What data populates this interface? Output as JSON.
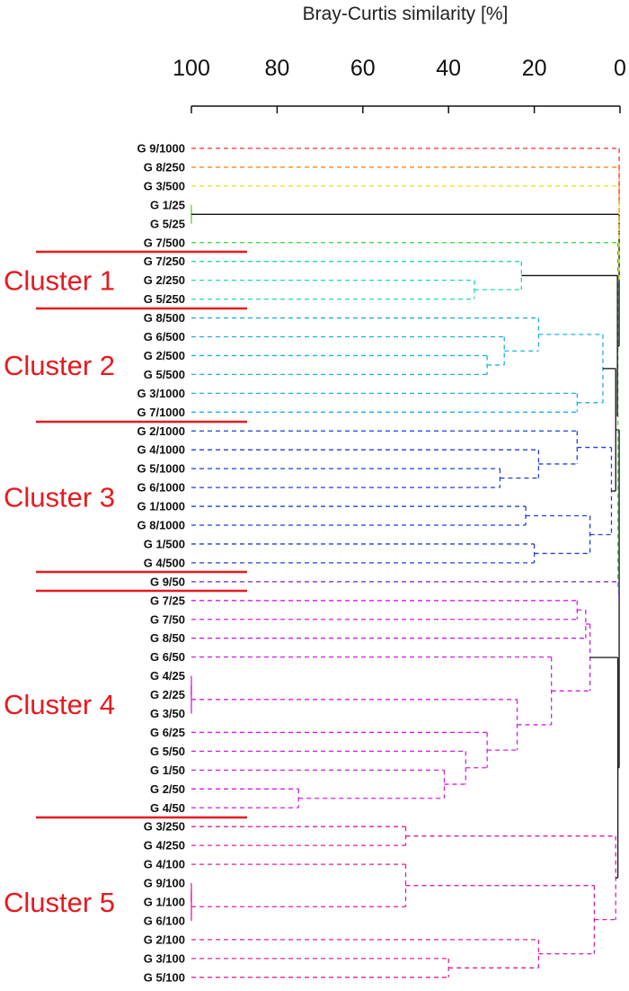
{
  "chart_data": {
    "type": "dendrogram",
    "title": "",
    "xlabel": "Bray-Curtis similarity [%]",
    "xlim": [
      100,
      0
    ],
    "ticks": [
      100,
      80,
      60,
      40,
      20,
      0
    ],
    "tick_labels": [
      "100",
      "80",
      "60",
      "40",
      "20",
      "0"
    ],
    "leaves": [
      {
        "label": "G 9/1000",
        "color": "#ff3030"
      },
      {
        "label": "G 8/250",
        "color": "#f08a1a"
      },
      {
        "label": "G 3/500",
        "color": "#f0e010"
      },
      {
        "label": "G 1/25",
        "color": "#60d020"
      },
      {
        "label": "G 5/25",
        "color": "#60d020"
      },
      {
        "label": "G 7/500",
        "color": "#30d830"
      },
      {
        "label": "G 7/250",
        "color": "#20d8b0"
      },
      {
        "label": "G 2/250",
        "color": "#20d8b0"
      },
      {
        "label": "G 5/250",
        "color": "#20d8b0"
      },
      {
        "label": "G 8/500",
        "color": "#20b0e0"
      },
      {
        "label": "G 6/500",
        "color": "#20b0e0"
      },
      {
        "label": "G 2/500",
        "color": "#20b0e0"
      },
      {
        "label": "G 5/500",
        "color": "#20b0e0"
      },
      {
        "label": "G 3/1000",
        "color": "#20b0e0"
      },
      {
        "label": "G 7/1000",
        "color": "#20b0e0"
      },
      {
        "label": "G 2/1000",
        "color": "#2040d0"
      },
      {
        "label": "G 4/1000",
        "color": "#2040d0"
      },
      {
        "label": "G 5/1000",
        "color": "#2040d0"
      },
      {
        "label": "G 6/1000",
        "color": "#2040d0"
      },
      {
        "label": "G 1/1000",
        "color": "#2040d0"
      },
      {
        "label": "G 8/1000",
        "color": "#2040d0"
      },
      {
        "label": "G 1/500",
        "color": "#2040d0"
      },
      {
        "label": "G 4/500",
        "color": "#2040d0"
      },
      {
        "label": "G 9/50",
        "color": "#7020d0"
      },
      {
        "label": "G 7/25",
        "color": "#d020e0"
      },
      {
        "label": "G 7/50",
        "color": "#d020e0"
      },
      {
        "label": "G 8/50",
        "color": "#d020e0"
      },
      {
        "label": "G 6/50",
        "color": "#d020e0"
      },
      {
        "label": "G 4/25",
        "color": "#d020e0"
      },
      {
        "label": "G 2/25",
        "color": "#d020e0"
      },
      {
        "label": "G 3/50",
        "color": "#d020e0"
      },
      {
        "label": "G 6/25",
        "color": "#d020e0"
      },
      {
        "label": "G 5/50",
        "color": "#d020e0"
      },
      {
        "label": "G 1/50",
        "color": "#d020e0"
      },
      {
        "label": "G 2/50",
        "color": "#d020e0"
      },
      {
        "label": "G 4/50",
        "color": "#d020e0"
      },
      {
        "label": "G 3/250",
        "color": "#e0209a"
      },
      {
        "label": "G 4/250",
        "color": "#e0209a"
      },
      {
        "label": "G 4/100",
        "color": "#e0209a"
      },
      {
        "label": "G 9/100",
        "color": "#e0209a"
      },
      {
        "label": "G 1/100",
        "color": "#e0209a"
      },
      {
        "label": "G 6/100",
        "color": "#e0209a"
      },
      {
        "label": "G 2/100",
        "color": "#e0209a"
      },
      {
        "label": "G 3/100",
        "color": "#e0209a"
      },
      {
        "label": "G 5/100",
        "color": "#e0209a"
      }
    ],
    "merges": [
      {
        "height": 100,
        "children": [
          "L3",
          "L4"
        ],
        "style": "solid",
        "color": "#60d020"
      },
      {
        "height": 34,
        "children": [
          "L7",
          "L8"
        ],
        "style": "dashed",
        "color": "#20d8b0"
      },
      {
        "height": 23,
        "children": [
          "L6",
          "m1"
        ],
        "style": "dashed",
        "color": "#20d8b0"
      },
      {
        "height": 31,
        "children": [
          "L11",
          "L12"
        ],
        "style": "dashed",
        "color": "#20b0e0"
      },
      {
        "height": 27,
        "children": [
          "L10",
          "m3"
        ],
        "style": "dashed",
        "color": "#20b0e0"
      },
      {
        "height": 19,
        "children": [
          "L9",
          "m4"
        ],
        "style": "dashed",
        "color": "#20b0e0"
      },
      {
        "height": 10,
        "children": [
          "L13",
          "L14"
        ],
        "style": "dashed",
        "color": "#20b0e0"
      },
      {
        "height": 4,
        "children": [
          "m5",
          "m6"
        ],
        "style": "dashed",
        "color": "#20b0e0"
      },
      {
        "height": 28,
        "children": [
          "L17",
          "L18"
        ],
        "style": "dashed",
        "color": "#2040d0"
      },
      {
        "height": 19,
        "children": [
          "L16",
          "m8"
        ],
        "style": "dashed",
        "color": "#2040d0"
      },
      {
        "height": 10,
        "children": [
          "L15",
          "m9"
        ],
        "style": "dashed",
        "color": "#2040d0"
      },
      {
        "height": 22,
        "children": [
          "L19",
          "L20"
        ],
        "style": "dashed",
        "color": "#2040d0"
      },
      {
        "height": 20,
        "children": [
          "L21",
          "L22"
        ],
        "style": "dashed",
        "color": "#2040d0"
      },
      {
        "height": 7,
        "children": [
          "m11",
          "m12"
        ],
        "style": "dashed",
        "color": "#2040d0"
      },
      {
        "height": 2,
        "children": [
          "m10",
          "m13"
        ],
        "style": "dashed",
        "color": "#2040d0"
      },
      {
        "height": 1,
        "children": [
          "m7",
          "m14"
        ],
        "style": "solid",
        "color": "#111111"
      },
      {
        "height": 100,
        "children": [
          "L28",
          "L29"
        ],
        "style": "solid",
        "color": "#d020e0"
      },
      {
        "height": 100,
        "children": [
          "m16",
          "L30"
        ],
        "style": "solid",
        "color": "#d020e0"
      },
      {
        "height": 75,
        "children": [
          "L34",
          "L35"
        ],
        "style": "dashed",
        "color": "#d020e0"
      },
      {
        "height": 41,
        "children": [
          "L33",
          "m18"
        ],
        "style": "dashed",
        "color": "#d020e0"
      },
      {
        "height": 36,
        "children": [
          "L32",
          "m19"
        ],
        "style": "dashed",
        "color": "#d020e0"
      },
      {
        "height": 31,
        "children": [
          "L31",
          "m20"
        ],
        "style": "dashed",
        "color": "#d020e0"
      },
      {
        "height": 24,
        "children": [
          "m17",
          "m21"
        ],
        "style": "dashed",
        "color": "#d020e0"
      },
      {
        "height": 16,
        "children": [
          "L27",
          "m22"
        ],
        "style": "dashed",
        "color": "#d020e0"
      },
      {
        "height": 10,
        "children": [
          "L24",
          "L25"
        ],
        "style": "dashed",
        "color": "#d020e0"
      },
      {
        "height": 8,
        "children": [
          "m24",
          "L26"
        ],
        "style": "dashed",
        "color": "#d020e0"
      },
      {
        "height": 7,
        "children": [
          "m25",
          "m23"
        ],
        "style": "dashed",
        "color": "#d020e0"
      },
      {
        "height": 50,
        "children": [
          "L36",
          "L37"
        ],
        "style": "dashed",
        "color": "#e0209a"
      },
      {
        "height": 100,
        "children": [
          "L39",
          "L40"
        ],
        "style": "solid",
        "color": "#e0209a"
      },
      {
        "height": 100,
        "children": [
          "m28",
          "L41"
        ],
        "style": "solid",
        "color": "#e0209a"
      },
      {
        "height": 50,
        "children": [
          "L38",
          "m29"
        ],
        "style": "dashed",
        "color": "#e0209a"
      },
      {
        "height": 40,
        "children": [
          "L43",
          "L44"
        ],
        "style": "dashed",
        "color": "#e0209a"
      },
      {
        "height": 19,
        "children": [
          "L42",
          "m31"
        ],
        "style": "dashed",
        "color": "#e0209a"
      },
      {
        "height": 6,
        "children": [
          "m30",
          "m32"
        ],
        "style": "dashed",
        "color": "#e0209a"
      },
      {
        "height": 1,
        "children": [
          "m27",
          "m33"
        ],
        "style": "dashed",
        "color": "#e0209a"
      },
      {
        "height": 0.5,
        "children": [
          "m26",
          "m34"
        ],
        "style": "solid",
        "color": "#111111"
      },
      {
        "height": 0.2,
        "children": [
          "m15",
          "m35"
        ],
        "style": "solid",
        "color": "#111111"
      },
      {
        "height": 0.3,
        "children": [
          "L23",
          "m36"
        ],
        "style": "dashed",
        "color": "#7020d0"
      },
      {
        "height": 0.5,
        "children": [
          "L5",
          "m37"
        ],
        "style": "dashed",
        "color": "#30d830"
      },
      {
        "height": 0.6,
        "children": [
          "m2",
          "m38"
        ],
        "style": "solid",
        "color": "#111111"
      },
      {
        "height": 0.2,
        "children": [
          "m0",
          "m39"
        ],
        "style": "solid",
        "color": "#111111"
      },
      {
        "height": 0.2,
        "children": [
          "L2",
          "m40"
        ],
        "style": "dashed",
        "color": "#f0e010"
      },
      {
        "height": 0.2,
        "children": [
          "L1",
          "m41"
        ],
        "style": "dashed",
        "color": "#f08a1a"
      },
      {
        "height": 0.2,
        "children": [
          "L0",
          "m42"
        ],
        "style": "dashed",
        "color": "#ff3030"
      }
    ],
    "clusters": [
      {
        "label": "Cluster 1",
        "first_leaf": 6,
        "last_leaf": 8
      },
      {
        "label": "Cluster 2",
        "first_leaf": 9,
        "last_leaf": 14
      },
      {
        "label": "Cluster 3",
        "first_leaf": 15,
        "last_leaf": 22
      },
      {
        "label": "Cluster 4",
        "first_leaf": 24,
        "last_leaf": 35
      },
      {
        "label": "Cluster 5",
        "first_leaf": 36,
        "last_leaf": 44
      }
    ],
    "cluster_color": "#e8191f"
  }
}
